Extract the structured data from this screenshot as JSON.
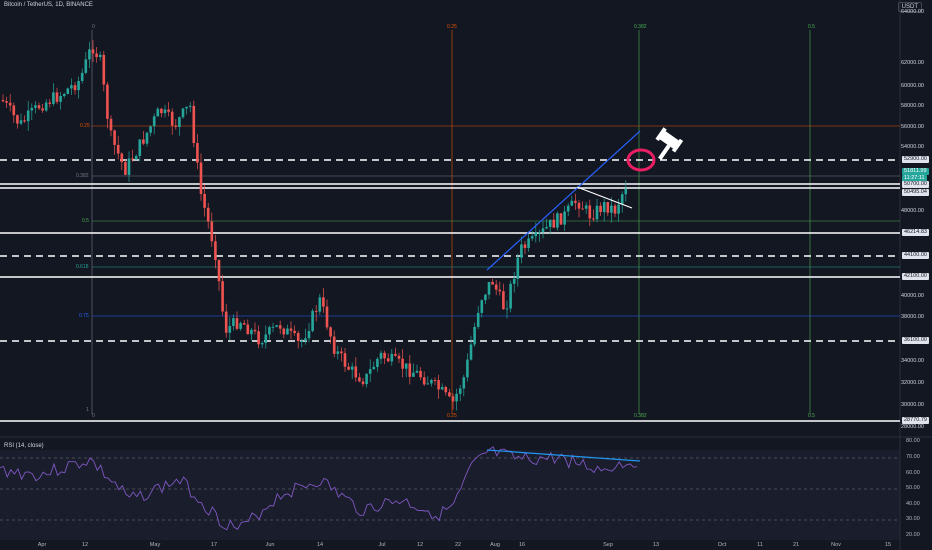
{
  "header": {
    "symbol": "Bitcoin / TetherUS, 1D, BINANCE",
    "currency": "USDT"
  },
  "price_axis": [
    "64000.00",
    "62000.00",
    "60000.00",
    "58000.00",
    "56000.00",
    "54000.00",
    "48000.00",
    "40000.00",
    "38000.00",
    "34000.00",
    "32000.00",
    "30000.00",
    "28000.00"
  ],
  "price_boxes": [
    {
      "text": "52900.00",
      "kind": "w"
    },
    {
      "text": "51811.99",
      "kind": "g"
    },
    {
      "text": "11:27:11",
      "kind": "g"
    },
    {
      "text": "50700.00",
      "kind": "w"
    },
    {
      "text": "50495.04",
      "kind": "w"
    },
    {
      "text": "46214.83",
      "kind": "w"
    },
    {
      "text": "44100.00",
      "kind": "w"
    },
    {
      "text": "42100.00",
      "kind": "w"
    },
    {
      "text": "36100.00",
      "kind": "w"
    },
    {
      "text": "28770.79",
      "kind": "w"
    }
  ],
  "fib_top_labels": [
    "0",
    "0.25",
    "0.382",
    "0.5"
  ],
  "fib_bottom_labels": [
    "0",
    "0.25",
    "0.382",
    "0.5"
  ],
  "fib_left_labels": [
    "0.25",
    "0.382",
    "0.5",
    "0.618",
    "0.75",
    "1"
  ],
  "date_axis": [
    "Apr",
    "12",
    "May",
    "17",
    "Jun",
    "14",
    "Jul",
    "12",
    "22",
    "Aug",
    "16",
    "Sep",
    "13",
    "Oct",
    "11",
    "21",
    "Nov",
    "15"
  ],
  "rsi": {
    "title": "RSI (14, close)",
    "axis": [
      "80.00",
      "70.00",
      "60.00",
      "50.00",
      "40.00",
      "30.00",
      "20.00"
    ]
  },
  "colors": {
    "bg": "#131722",
    "up": "#26a69a",
    "down": "#ef5350",
    "trend": "#2962ff",
    "circle": "#e91e63"
  },
  "icons": {
    "gavel": "gavel-icon"
  }
}
